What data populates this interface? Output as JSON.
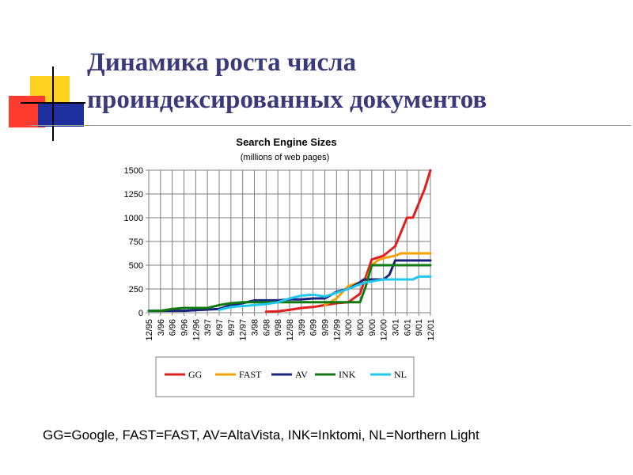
{
  "slide": {
    "title_line1": "Динамика роста числа",
    "title_line2": "проиндексированных документов",
    "title_color": "#3a3a7a",
    "footnote": "GG=Google, FAST=FAST, AV=AltaVista, INK=Inktomi, NL=Northern Light",
    "decor_colors": {
      "yellow": "#ffd21f",
      "red": "#ff3b30",
      "blue": "#1f2f9e"
    }
  },
  "chart_data": {
    "type": "line",
    "title": "Search Engine Sizes",
    "subtitle": "(millions of web pages)",
    "xlabel": "",
    "ylabel": "",
    "ylim": [
      0,
      1500
    ],
    "yticks": [
      0,
      250,
      500,
      750,
      1000,
      1250,
      1500
    ],
    "grid": true,
    "legend_position": "bottom",
    "x_tick_labels": [
      "12/95",
      "3/96",
      "6/96",
      "9/96",
      "12/96",
      "3/97",
      "6/97",
      "9/97",
      "12/97",
      "3/98",
      "6/98",
      "9/98",
      "12/98",
      "3/99",
      "6/99",
      "9/99",
      "12/99",
      "3/00",
      "6/00",
      "9/00",
      "12/00",
      "3/01",
      "6/01",
      "9/01",
      "12/01"
    ],
    "series": [
      {
        "name": "GG",
        "color": "#e02020",
        "points": [
          [
            10,
            10
          ],
          [
            11,
            15
          ],
          [
            12,
            30
          ],
          [
            13,
            50
          ],
          [
            14,
            60
          ],
          [
            15,
            80
          ],
          [
            16,
            100
          ],
          [
            17,
            110
          ],
          [
            18,
            200
          ],
          [
            18.5,
            380
          ],
          [
            19,
            560
          ],
          [
            19.5,
            580
          ],
          [
            20,
            600
          ],
          [
            21,
            700
          ],
          [
            21.5,
            850
          ],
          [
            22,
            1000
          ],
          [
            22.5,
            1000
          ],
          [
            23,
            1150
          ],
          [
            23.5,
            1300
          ],
          [
            24,
            1500
          ]
        ]
      },
      {
        "name": "FAST",
        "color": "#f5a000",
        "points": [
          [
            15,
            80
          ],
          [
            16,
            150
          ],
          [
            17,
            280
          ],
          [
            18,
            320
          ],
          [
            18.5,
            320
          ],
          [
            19,
            500
          ],
          [
            19.5,
            550
          ],
          [
            20,
            575
          ],
          [
            21,
            600
          ],
          [
            21.5,
            625
          ],
          [
            22,
            625
          ],
          [
            24,
            625
          ]
        ]
      },
      {
        "name": "AV",
        "color": "#1a237e",
        "points": [
          [
            0,
            20
          ],
          [
            3,
            20
          ],
          [
            6,
            40
          ],
          [
            7,
            80
          ],
          [
            8,
            100
          ],
          [
            9,
            130
          ],
          [
            10,
            130
          ],
          [
            11,
            130
          ],
          [
            12,
            140
          ],
          [
            13,
            140
          ],
          [
            14,
            150
          ],
          [
            15,
            150
          ],
          [
            16,
            220
          ],
          [
            17,
            250
          ],
          [
            18,
            320
          ],
          [
            18.3,
            350
          ],
          [
            19,
            350
          ],
          [
            20,
            350
          ],
          [
            20.5,
            400
          ],
          [
            21,
            550
          ],
          [
            22,
            550
          ],
          [
            24,
            550
          ]
        ]
      },
      {
        "name": "INK",
        "color": "#107a10",
        "points": [
          [
            0,
            20
          ],
          [
            1,
            20
          ],
          [
            2,
            40
          ],
          [
            3,
            50
          ],
          [
            4,
            50
          ],
          [
            5,
            50
          ],
          [
            6,
            80
          ],
          [
            7,
            100
          ],
          [
            8,
            110
          ],
          [
            9,
            110
          ],
          [
            10,
            110
          ],
          [
            11,
            110
          ],
          [
            12,
            110
          ],
          [
            13,
            110
          ],
          [
            14,
            110
          ],
          [
            15,
            110
          ],
          [
            16,
            110
          ],
          [
            17,
            110
          ],
          [
            18,
            110
          ],
          [
            18.5,
            280
          ],
          [
            19,
            500
          ],
          [
            19.5,
            500
          ],
          [
            20,
            500
          ],
          [
            21,
            500
          ],
          [
            24,
            500
          ]
        ]
      },
      {
        "name": "NL",
        "color": "#20c8f0",
        "points": [
          [
            6,
            30
          ],
          [
            7,
            60
          ],
          [
            8,
            70
          ],
          [
            9,
            80
          ],
          [
            10,
            90
          ],
          [
            11,
            110
          ],
          [
            12,
            150
          ],
          [
            13,
            180
          ],
          [
            14,
            190
          ],
          [
            15,
            170
          ],
          [
            16,
            210
          ],
          [
            17,
            250
          ],
          [
            18,
            300
          ],
          [
            18.5,
            320
          ],
          [
            19,
            330
          ],
          [
            20,
            350
          ],
          [
            21,
            350
          ],
          [
            22,
            350
          ],
          [
            22.5,
            350
          ],
          [
            23,
            380
          ],
          [
            24,
            380
          ]
        ]
      }
    ]
  }
}
